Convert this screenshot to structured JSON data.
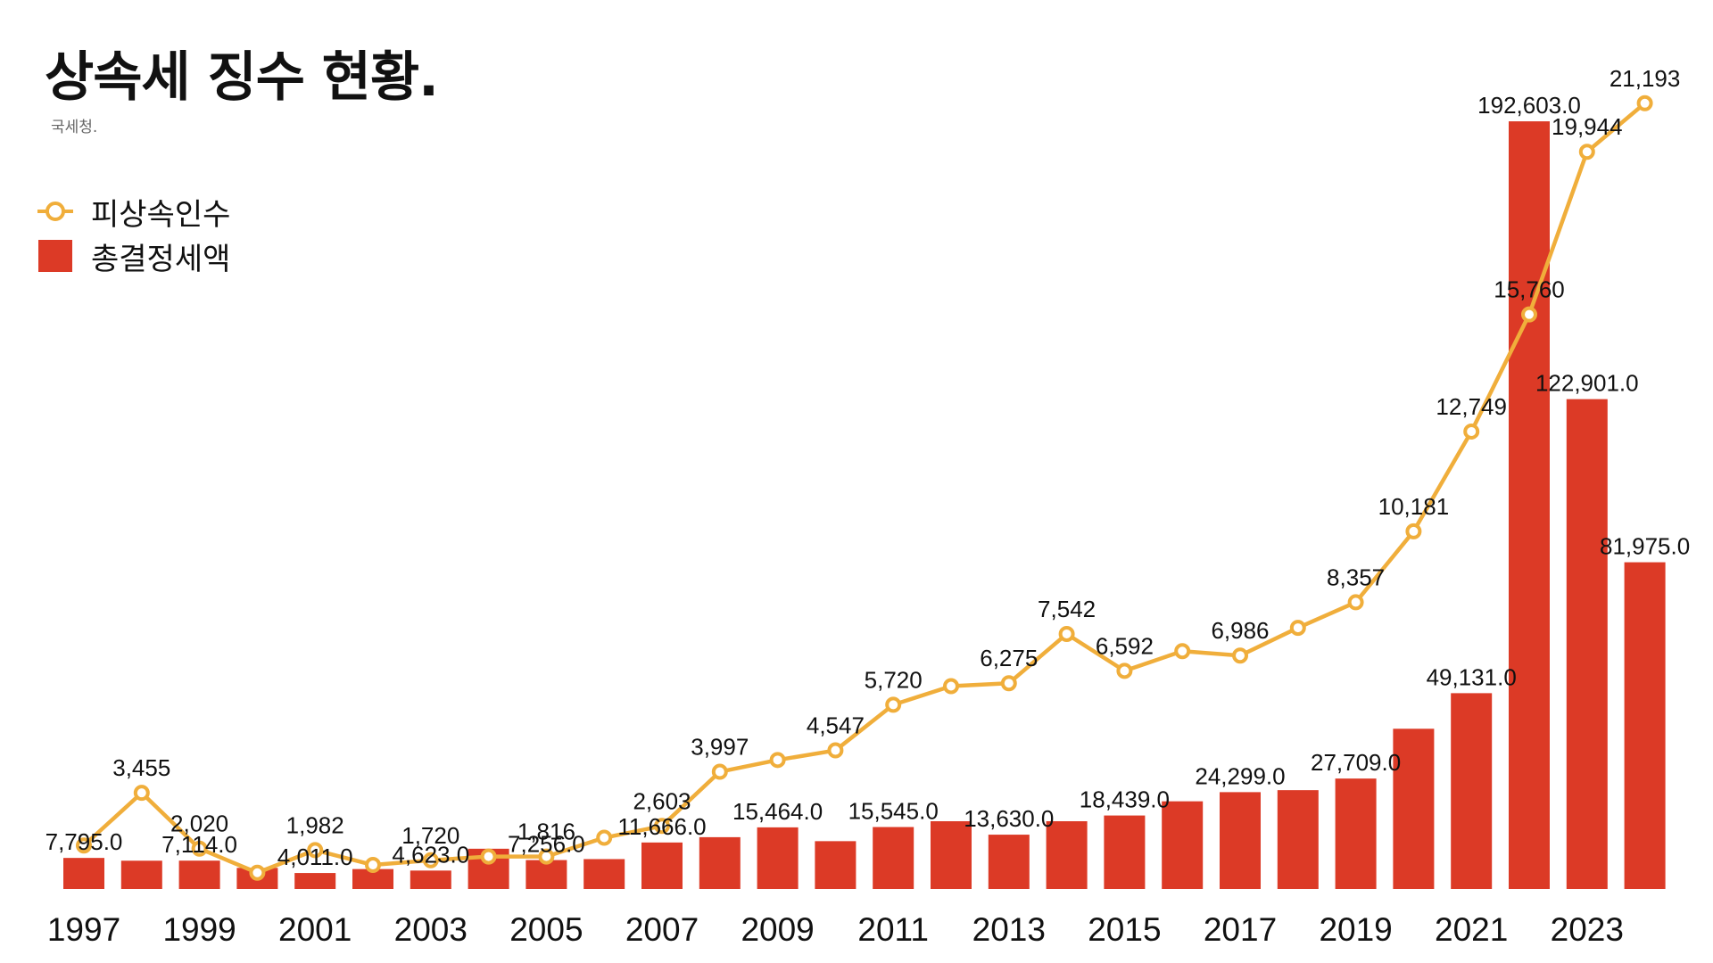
{
  "title": "상속세 징수 현황.",
  "source": "국세청.",
  "colors": {
    "bar": "#DC3A26",
    "line": "#F0AE3B",
    "text": "#111111"
  },
  "chart_data": {
    "type": "bar+line",
    "x": [
      1997,
      1998,
      1999,
      2000,
      2001,
      2002,
      2003,
      2004,
      2005,
      2006,
      2007,
      2008,
      2009,
      2010,
      2011,
      2012,
      2013,
      2014,
      2015,
      2016,
      2017,
      2018,
      2019,
      2020,
      2021,
      2022,
      2023,
      2024
    ],
    "x_tick_labels": [
      "1997",
      "1999",
      "2001",
      "2003",
      "2005",
      "2007",
      "2009",
      "2011",
      "2013",
      "2015",
      "2017",
      "2019",
      "2021",
      "2023"
    ],
    "series": [
      {
        "name": "총결정세액",
        "type": "bar",
        "axis": "left",
        "values": [
          7795,
          7100,
          7114,
          5300,
          4011,
          5000,
          4623,
          10100,
          7256,
          7500,
          11666,
          13000,
          15464,
          12000,
          15545,
          17000,
          13630,
          17000,
          18439,
          22000,
          24299,
          24800,
          27709,
          40200,
          49131,
          192603,
          122901,
          81975
        ],
        "labels": [
          "7,795.0",
          "",
          "7,114.0",
          "",
          "4,011.0",
          "",
          "4,623.0",
          "",
          "7,256.0",
          "",
          "11,666.0",
          "",
          "15,464.0",
          "",
          "15,545.0",
          "",
          "13,630.0",
          "",
          "18,439.0",
          "",
          "24,299.0",
          "",
          "27,709.0",
          "",
          "49,131.0",
          "192,603.0",
          "122,901.0",
          "81,975.0"
        ]
      },
      {
        "name": "피상속인수",
        "type": "line",
        "axis": "right",
        "values": [
          2100,
          3455,
          2020,
          1400,
          1982,
          1600,
          1720,
          1816,
          1816,
          2300,
          2603,
          3997,
          4300,
          4547,
          5720,
          6200,
          6275,
          7542,
          6592,
          7100,
          6986,
          7700,
          8357,
          10181,
          12749,
          15760,
          19944,
          21193
        ],
        "labels": [
          "",
          "3,455",
          "2,020",
          "",
          "1,982",
          "",
          "1,720",
          "",
          "1,816",
          "",
          "2,603",
          "3,997",
          "",
          "4,547",
          "5,720",
          "",
          "6,275",
          "7,542",
          "6,592",
          "",
          "6,986",
          "",
          "8,357",
          "10,181",
          "12,749",
          "15,760",
          "19,944",
          "21,193"
        ]
      }
    ],
    "left_ylim": [
      0,
      200000
    ],
    "right_ylim": [
      -7000,
      23000
    ],
    "grid": false,
    "legend_position": "top-left"
  }
}
